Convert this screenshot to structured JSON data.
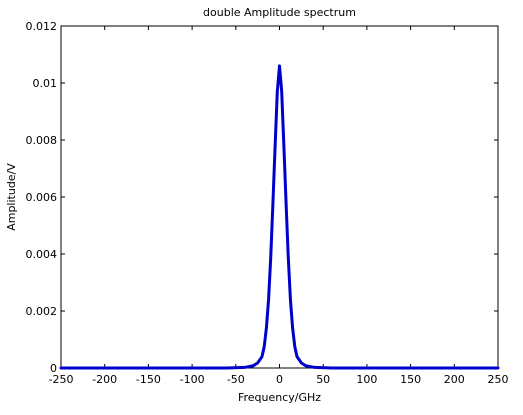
{
  "chart_data": {
    "type": "line",
    "title": "double Amplitude spectrum",
    "xlabel": "Frequency/GHz",
    "ylabel": "Amplitude/V",
    "xlim": [
      -250,
      250
    ],
    "ylim": [
      0,
      0.012
    ],
    "xticks": [
      -250,
      -200,
      -150,
      -100,
      -50,
      0,
      50,
      100,
      150,
      200,
      250
    ],
    "yticks": [
      0,
      0.002,
      0.004,
      0.006,
      0.008,
      0.01,
      0.012
    ],
    "xtick_labels": [
      "-250",
      "-200",
      "-150",
      "-100",
      "-50",
      "0",
      "50",
      "100",
      "150",
      "200",
      "250"
    ],
    "ytick_labels": [
      "0",
      "0.002",
      "0.004",
      "0.006",
      "0.008",
      "0.01",
      "0.012"
    ],
    "grid": false,
    "series": [
      {
        "color": "#0000cc",
        "x": [
          -250,
          -200,
          -150,
          -100,
          -60,
          -40,
          -30,
          -25,
          -20,
          -17.5,
          -15,
          -12.5,
          -10,
          -7.5,
          -5,
          -2.5,
          0,
          2.5,
          5,
          7.5,
          10,
          12.5,
          15,
          17.5,
          20,
          25,
          30,
          40,
          60,
          100,
          150,
          200,
          250
        ],
        "y": [
          0,
          0,
          0,
          0,
          0,
          2e-05,
          8e-05,
          0.00018,
          0.0004,
          0.00075,
          0.0014,
          0.0024,
          0.0039,
          0.0058,
          0.0078,
          0.0097,
          0.0106,
          0.0097,
          0.0078,
          0.0058,
          0.0039,
          0.0024,
          0.0014,
          0.00075,
          0.0004,
          0.00018,
          8e-05,
          2e-05,
          0,
          0,
          0,
          0,
          0
        ]
      }
    ]
  }
}
